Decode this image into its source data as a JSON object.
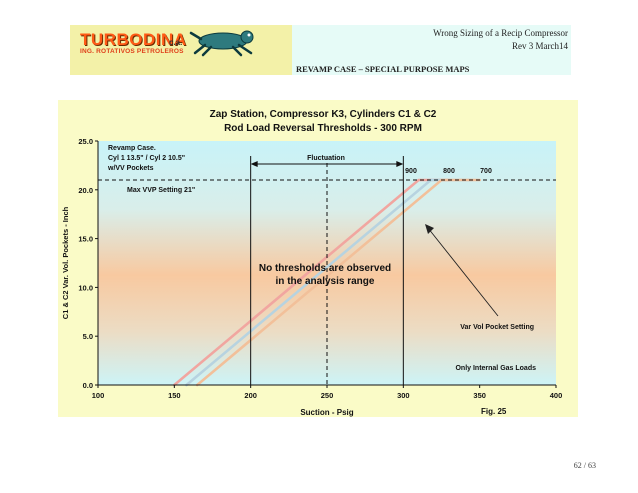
{
  "header": {
    "logo_text": "TURBODINA",
    "logo_suffix": "c.a.",
    "logo_subtitle": "ING. ROTATIVOS PETROLEROS",
    "doc_title": "Wrong Sizing of a Recip Compressor",
    "revision": "Rev 3 March14",
    "section": "REVAMP CASE – SPECIAL PURPOSE MAPS"
  },
  "chart_data": {
    "type": "line",
    "title_line1": "Zap Station, Compressor K3, Cylinders C1 & C2",
    "title_line2": "Rod Load Reversal Thresholds - 300 RPM",
    "xlabel": "Suction - Psig",
    "ylabel": "C1 & C2 Var. Vol. Pockets - Inch",
    "xlim": [
      100,
      400
    ],
    "ylim": [
      0,
      25
    ],
    "x_ticks": [
      "100",
      "150",
      "200",
      "250",
      "300",
      "350",
      "400"
    ],
    "y_ticks": [
      "0.0",
      "5.0",
      "10.0",
      "15.0",
      "20.0",
      "25.0"
    ],
    "series": [
      {
        "name": "900",
        "points": [
          [
            150,
            0
          ],
          [
            310,
            21
          ],
          [
            330,
            21
          ]
        ],
        "color": "#f1a6a0"
      },
      {
        "name": "800",
        "points": [
          [
            158,
            0
          ],
          [
            318,
            21
          ],
          [
            345,
            21
          ]
        ],
        "color": "#b7d3e0"
      },
      {
        "name": "700",
        "points": [
          [
            165,
            0
          ],
          [
            325,
            21
          ],
          [
            350,
            21
          ]
        ],
        "color": "#f2c09a"
      }
    ],
    "max_vvp": {
      "y": 21,
      "label": "Max VVP Setting 21\""
    },
    "fluctuation": {
      "x_from": 200,
      "x_to": 300,
      "label": "Fluctuation"
    },
    "center_line_x": 250,
    "annotations": {
      "revamp_line1": "Revamp Case.",
      "revamp_line2": "Cyl 1 13.5\" / Cyl 2 10.5\"",
      "revamp_line3": "w/VV Pockets",
      "no_thresholds_line1": "No thresholds are observed",
      "no_thresholds_line2": "in the analysis range",
      "var_vol": "Var Vol Pocket Setting",
      "internal_gas": "Only Internal Gas Loads",
      "fig": "Fig. 25"
    },
    "grid": false,
    "background_colors": {
      "top": "#c8f3f8",
      "mid": "#f8c9a0",
      "bottom": "#cdf4f7",
      "frame": "#fafbc7"
    }
  },
  "page": {
    "number": "62 / 63"
  }
}
